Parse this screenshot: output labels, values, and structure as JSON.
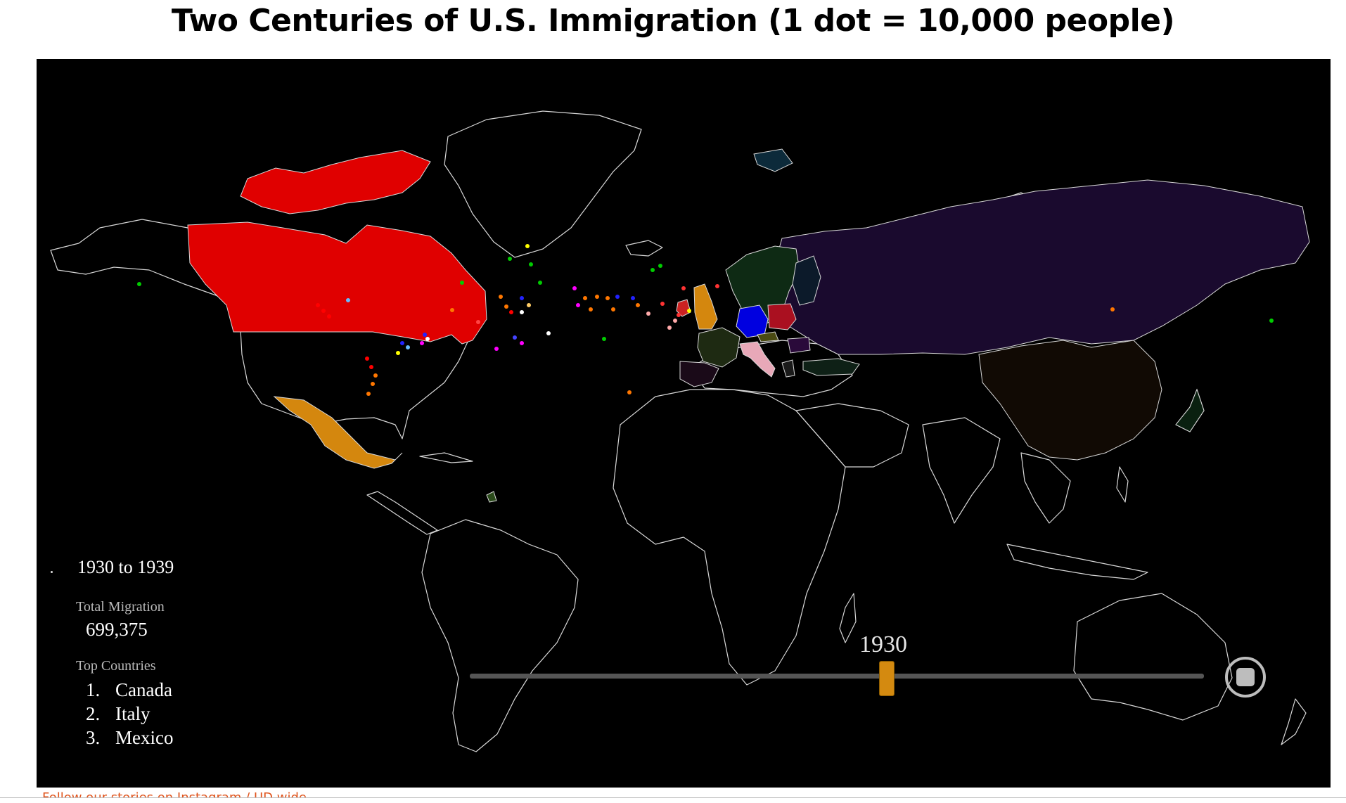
{
  "title": "Two Centuries of U.S. Immigration (1 dot = 10,000 people)",
  "info_panel": {
    "period": "1930 to 1939",
    "total_migration_label": "Total Migration",
    "total_migration_value": "699,375",
    "top_countries_label": "Top Countries",
    "top_countries": [
      {
        "rank": "1.",
        "name": "Canada"
      },
      {
        "rank": "2.",
        "name": "Italy"
      },
      {
        "rank": "3.",
        "name": "Mexico"
      }
    ]
  },
  "slider": {
    "value_label": "1930",
    "thumb_color": "#d48a10"
  },
  "highlighted_countries": {
    "Canada": "#e00000",
    "Mexico": "#d4870e",
    "Russia / USSR": "#1a0a2e",
    "China": "#110a04",
    "Germany": "#0000e0",
    "Italy": "#e8a8b8",
    "United Kingdom": "#d4870e",
    "Ireland": "#cc2222",
    "France": "#1e2a12",
    "Poland": "#aa1020",
    "Scandinavia": "#0e2a14",
    "Greenland": "#000000",
    "Svalbard": "#0c2a3a"
  },
  "footer": {
    "link_text": "Follow our stories on Instagram / UD wide"
  },
  "icons": {
    "stop": "stop-icon"
  }
}
